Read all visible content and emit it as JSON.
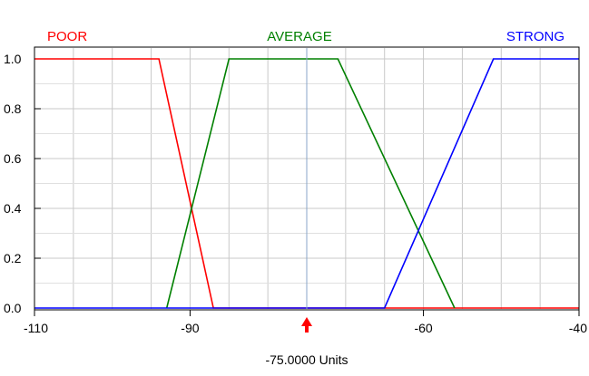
{
  "chart_data": {
    "type": "line",
    "title": "",
    "xlabel": "",
    "ylabel": "",
    "xlim": [
      -110,
      -40
    ],
    "ylim": [
      0,
      1
    ],
    "x_ticks": [
      -110,
      -90,
      -60,
      -40
    ],
    "y_ticks": [
      0.0,
      0.2,
      0.4,
      0.6,
      0.8,
      1.0
    ],
    "x_tick_labels": [
      "-110",
      "-90",
      "-60",
      "-40"
    ],
    "y_tick_labels": [
      "0.0",
      "0.2",
      "0.4",
      "0.6",
      "0.8",
      "1.0"
    ],
    "grid": true,
    "legend": "top",
    "series": [
      {
        "name": "POOR",
        "color": "#ff0000",
        "points": [
          [
            -110,
            1.0
          ],
          [
            -94,
            1.0
          ],
          [
            -87,
            0.0
          ],
          [
            -40,
            0.0
          ]
        ]
      },
      {
        "name": "AVERAGE",
        "color": "#008000",
        "points": [
          [
            -93,
            0.0
          ],
          [
            -85,
            1.0
          ],
          [
            -71,
            1.0
          ],
          [
            -56,
            0.0
          ]
        ]
      },
      {
        "name": "STRONG",
        "color": "#0000ff",
        "points": [
          [
            -110,
            0.0
          ],
          [
            -65,
            0.0
          ],
          [
            -51,
            1.0
          ],
          [
            -40,
            1.0
          ]
        ]
      }
    ],
    "marker": {
      "value": -75,
      "color": "#ff0000",
      "cursor_color": "#8aa6c8",
      "readout": "-75.0000 Units"
    }
  }
}
